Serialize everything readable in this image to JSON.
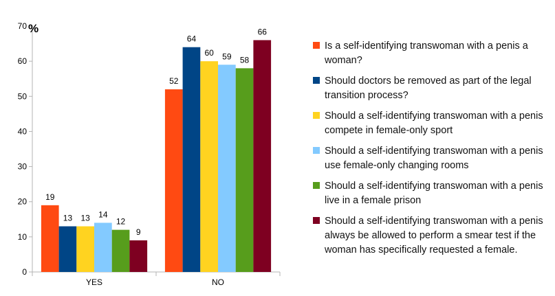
{
  "chart_data": {
    "type": "bar",
    "title": "",
    "ylabel": "%",
    "xlabel": "",
    "ylim": [
      0,
      70
    ],
    "ytick_step": 10,
    "grid": false,
    "legend_position": "right",
    "categories": [
      "YES",
      "NO"
    ],
    "series": [
      {
        "name": "Is a self-identifying transwoman with a penis a woman?",
        "color": "#ff4a12",
        "values": [
          19,
          52
        ]
      },
      {
        "name": "Should doctors be removed as part of the legal transition process?",
        "color": "#004586",
        "values": [
          13,
          64
        ]
      },
      {
        "name": "Should a self-identifying transwoman with a penis compete in female-only sport",
        "color": "#ffd320",
        "values": [
          13,
          60
        ]
      },
      {
        "name": "Should a self-identifying transwoman with a penis use female-only changing rooms",
        "color": "#83caff",
        "values": [
          14,
          59
        ]
      },
      {
        "name": "Should a self-identifying transwoman with a penis live in a female prison",
        "color": "#579d1c",
        "values": [
          12,
          58
        ]
      },
      {
        "name": "Should a self-identifying transwoman with a penis always be allowed to perform a smear test if the woman has specifically requested a female.",
        "color": "#7e0021",
        "values": [
          9,
          66
        ]
      }
    ]
  }
}
